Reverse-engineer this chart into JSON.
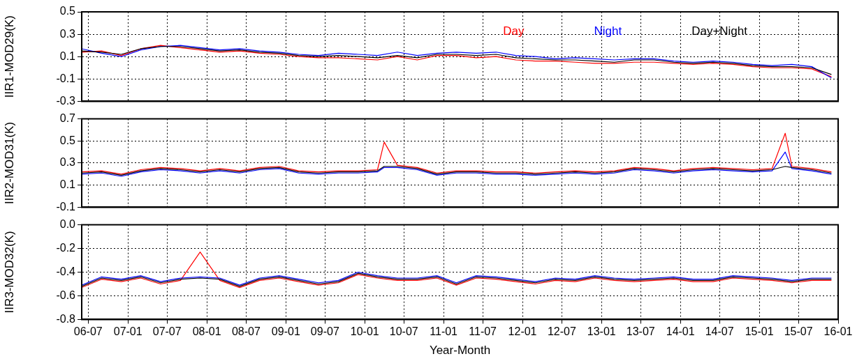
{
  "chart_data": [
    {
      "type": "line",
      "ylabel": "IIR1-MOD29(K)",
      "xlim": [
        "2006-06",
        "2016-01"
      ],
      "ylim": [
        -0.3,
        0.5
      ],
      "yticks": [
        -0.3,
        -0.1,
        0.1,
        0.3,
        0.5
      ],
      "xticks": [
        {
          "value": "2006-07",
          "label": null
        },
        {
          "value": "2007-01",
          "label": null
        },
        {
          "value": "2007-07",
          "label": null
        },
        {
          "value": "2008-01",
          "label": null
        },
        {
          "value": "2008-07",
          "label": null
        },
        {
          "value": "2009-01",
          "label": null
        },
        {
          "value": "2009-07",
          "label": null
        },
        {
          "value": "2010-01",
          "label": null
        },
        {
          "value": "2010-07",
          "label": null
        },
        {
          "value": "2011-01",
          "label": null
        },
        {
          "value": "2011-07",
          "label": null
        },
        {
          "value": "2012-01",
          "label": null
        },
        {
          "value": "2012-07",
          "label": null
        },
        {
          "value": "2013-01",
          "label": null
        },
        {
          "value": "2013-07",
          "label": null
        },
        {
          "value": "2014-01",
          "label": null
        },
        {
          "value": "2014-07",
          "label": null
        },
        {
          "value": "2015-01",
          "label": null
        },
        {
          "value": "2015-07",
          "label": null
        },
        {
          "value": "2016-01",
          "label": null
        }
      ],
      "tick_labels": "y",
      "grid": true,
      "legend": "top right",
      "marker": "none",
      "x": [
        "2006-06",
        "2006-09",
        "2006-12",
        "2007-03",
        "2007-06",
        "2007-09",
        "2007-12",
        "2008-03",
        "2008-06",
        "2008-09",
        "2008-12",
        "2009-03",
        "2009-06",
        "2009-09",
        "2009-12",
        "2010-03",
        "2010-06",
        "2010-09",
        "2010-12",
        "2011-03",
        "2011-06",
        "2011-09",
        "2011-12",
        "2012-03",
        "2012-06",
        "2012-09",
        "2012-12",
        "2013-03",
        "2013-06",
        "2013-09",
        "2013-12",
        "2014-03",
        "2014-06",
        "2014-09",
        "2014-12",
        "2015-03",
        "2015-06",
        "2015-09",
        "2015-12"
      ],
      "series": [
        {
          "name": "Day",
          "color": "#ff0000",
          "values": [
            0.14,
            0.15,
            0.11,
            0.17,
            0.2,
            0.18,
            0.16,
            0.14,
            0.15,
            0.13,
            0.12,
            0.1,
            0.09,
            0.09,
            0.08,
            0.07,
            0.1,
            0.07,
            0.11,
            0.11,
            0.09,
            0.1,
            0.07,
            0.06,
            0.06,
            0.05,
            0.04,
            0.04,
            0.05,
            0.05,
            0.04,
            0.03,
            0.04,
            0.03,
            0.01,
            0.0,
            0.0,
            -0.01,
            -0.08
          ]
        },
        {
          "name": "Night",
          "color": "#0000ff",
          "values": [
            0.17,
            0.13,
            0.1,
            0.16,
            0.19,
            0.2,
            0.18,
            0.16,
            0.17,
            0.15,
            0.14,
            0.12,
            0.11,
            0.13,
            0.12,
            0.11,
            0.14,
            0.11,
            0.13,
            0.14,
            0.13,
            0.14,
            0.11,
            0.1,
            0.08,
            0.09,
            0.08,
            0.07,
            0.08,
            0.08,
            0.06,
            0.05,
            0.06,
            0.05,
            0.03,
            0.02,
            0.03,
            0.01,
            -0.09
          ]
        },
        {
          "name": "Day+Night",
          "color": "#000000",
          "values": [
            0.15,
            0.14,
            0.12,
            0.17,
            0.19,
            0.19,
            0.17,
            0.15,
            0.16,
            0.14,
            0.13,
            0.11,
            0.1,
            0.11,
            0.1,
            0.09,
            0.11,
            0.09,
            0.12,
            0.12,
            0.11,
            0.12,
            0.09,
            0.08,
            0.07,
            0.07,
            0.06,
            0.05,
            0.07,
            0.07,
            0.05,
            0.04,
            0.05,
            0.04,
            0.02,
            0.01,
            0.01,
            0.0,
            -0.06
          ]
        }
      ]
    },
    {
      "type": "line",
      "ylabel": "IIR2-MOD31(K)",
      "xlim": [
        "2006-06",
        "2016-01"
      ],
      "ylim": [
        -0.1,
        0.7
      ],
      "yticks": [
        -0.1,
        0.1,
        0.3,
        0.5,
        0.7
      ],
      "xticks": [
        {
          "value": "2006-07",
          "label": null
        },
        {
          "value": "2007-01",
          "label": null
        },
        {
          "value": "2007-07",
          "label": null
        },
        {
          "value": "2008-01",
          "label": null
        },
        {
          "value": "2008-07",
          "label": null
        },
        {
          "value": "2009-01",
          "label": null
        },
        {
          "value": "2009-07",
          "label": null
        },
        {
          "value": "2010-01",
          "label": null
        },
        {
          "value": "2010-07",
          "label": null
        },
        {
          "value": "2011-01",
          "label": null
        },
        {
          "value": "2011-07",
          "label": null
        },
        {
          "value": "2012-01",
          "label": null
        },
        {
          "value": "2012-07",
          "label": null
        },
        {
          "value": "2013-01",
          "label": null
        },
        {
          "value": "2013-07",
          "label": null
        },
        {
          "value": "2014-01",
          "label": null
        },
        {
          "value": "2014-07",
          "label": null
        },
        {
          "value": "2015-01",
          "label": null
        },
        {
          "value": "2015-07",
          "label": null
        },
        {
          "value": "2016-01",
          "label": null
        }
      ],
      "tick_labels": "y",
      "grid": true,
      "marker": "none",
      "x": [
        "2006-06",
        "2006-09",
        "2006-12",
        "2007-03",
        "2007-06",
        "2007-09",
        "2007-12",
        "2008-03",
        "2008-06",
        "2008-09",
        "2008-12",
        "2009-03",
        "2009-06",
        "2009-09",
        "2009-12",
        "2010-03",
        "2010-04",
        "2010-06",
        "2010-09",
        "2010-12",
        "2011-03",
        "2011-06",
        "2011-09",
        "2011-12",
        "2012-03",
        "2012-06",
        "2012-09",
        "2012-12",
        "2013-03",
        "2013-06",
        "2013-09",
        "2013-12",
        "2014-03",
        "2014-06",
        "2014-09",
        "2014-12",
        "2015-03",
        "2015-05",
        "2015-06",
        "2015-09",
        "2015-12"
      ],
      "series": [
        {
          "color": "#ff0000",
          "values": [
            0.22,
            0.23,
            0.2,
            0.24,
            0.26,
            0.25,
            0.23,
            0.25,
            0.23,
            0.26,
            0.27,
            0.23,
            0.22,
            0.23,
            0.23,
            0.24,
            0.49,
            0.28,
            0.26,
            0.21,
            0.23,
            0.23,
            0.22,
            0.22,
            0.21,
            0.22,
            0.23,
            0.22,
            0.23,
            0.26,
            0.25,
            0.23,
            0.25,
            0.26,
            0.25,
            0.24,
            0.25,
            0.57,
            0.27,
            0.25,
            0.22
          ]
        },
        {
          "color": "#0000ff",
          "values": [
            0.2,
            0.21,
            0.18,
            0.22,
            0.24,
            0.23,
            0.21,
            0.23,
            0.21,
            0.24,
            0.25,
            0.21,
            0.2,
            0.21,
            0.21,
            0.22,
            0.26,
            0.26,
            0.24,
            0.19,
            0.21,
            0.21,
            0.2,
            0.2,
            0.19,
            0.2,
            0.21,
            0.2,
            0.21,
            0.24,
            0.23,
            0.21,
            0.23,
            0.24,
            0.23,
            0.22,
            0.23,
            0.4,
            0.25,
            0.23,
            0.2
          ]
        },
        {
          "color": "#000000",
          "values": [
            0.21,
            0.22,
            0.19,
            0.23,
            0.25,
            0.24,
            0.22,
            0.24,
            0.22,
            0.25,
            0.26,
            0.22,
            0.21,
            0.22,
            0.22,
            0.23,
            0.27,
            0.27,
            0.25,
            0.2,
            0.22,
            0.22,
            0.21,
            0.21,
            0.2,
            0.21,
            0.22,
            0.21,
            0.22,
            0.25,
            0.24,
            0.22,
            0.24,
            0.25,
            0.24,
            0.23,
            0.24,
            0.27,
            0.26,
            0.24,
            0.21
          ]
        }
      ]
    },
    {
      "type": "line",
      "ylabel": "IIR3-MOD32(K)",
      "xlabel": "Year-Month",
      "xlim": [
        "2006-06",
        "2016-01"
      ],
      "ylim": [
        -0.8,
        0.0
      ],
      "yticks": [
        -0.8,
        -0.6,
        -0.4,
        -0.2,
        {
          "value": 0,
          "label": "0.0"
        }
      ],
      "xticks": [
        {
          "value": "2006-07",
          "label": "06-07"
        },
        {
          "value": "2007-01",
          "label": "07-01"
        },
        {
          "value": "2007-07",
          "label": "07-07"
        },
        {
          "value": "2008-01",
          "label": "08-01"
        },
        {
          "value": "2008-07",
          "label": "08-07"
        },
        {
          "value": "2009-01",
          "label": "09-01"
        },
        {
          "value": "2009-07",
          "label": "09-07"
        },
        {
          "value": "2010-01",
          "label": "10-01"
        },
        {
          "value": "2010-07",
          "label": "10-07"
        },
        {
          "value": "2011-01",
          "label": "11-01"
        },
        {
          "value": "2011-07",
          "label": "11-07"
        },
        {
          "value": "2012-01",
          "label": "12-01"
        },
        {
          "value": "2012-07",
          "label": "12-07"
        },
        {
          "value": "2013-01",
          "label": "13-01"
        },
        {
          "value": "2013-07",
          "label": "13-07"
        },
        {
          "value": "2014-01",
          "label": "14-01"
        },
        {
          "value": "2014-07",
          "label": "14-07"
        },
        {
          "value": "2015-01",
          "label": "15-01"
        },
        {
          "value": "2015-07",
          "label": "15-07"
        },
        {
          "value": "2016-01",
          "label": "16-01"
        }
      ],
      "grid": true,
      "marker": "none",
      "x": [
        "2006-06",
        "2006-09",
        "2006-12",
        "2007-03",
        "2007-06",
        "2007-09",
        "2007-12",
        "2008-03",
        "2008-06",
        "2008-09",
        "2008-12",
        "2009-03",
        "2009-06",
        "2009-09",
        "2009-12",
        "2010-03",
        "2010-06",
        "2010-09",
        "2010-12",
        "2011-03",
        "2011-06",
        "2011-09",
        "2011-12",
        "2012-03",
        "2012-06",
        "2012-09",
        "2012-12",
        "2013-03",
        "2013-06",
        "2013-09",
        "2013-12",
        "2014-03",
        "2014-06",
        "2014-09",
        "2014-12",
        "2015-03",
        "2015-06",
        "2015-09",
        "2015-12"
      ],
      "series": [
        {
          "color": "#ff0000",
          "values": [
            -0.53,
            -0.46,
            -0.48,
            -0.45,
            -0.5,
            -0.47,
            -0.23,
            -0.47,
            -0.53,
            -0.47,
            -0.45,
            -0.48,
            -0.51,
            -0.49,
            -0.42,
            -0.45,
            -0.47,
            -0.47,
            -0.45,
            -0.51,
            -0.45,
            -0.46,
            -0.48,
            -0.5,
            -0.47,
            -0.48,
            -0.45,
            -0.47,
            -0.48,
            -0.47,
            -0.46,
            -0.48,
            -0.48,
            -0.45,
            -0.46,
            -0.47,
            -0.49,
            -0.47,
            -0.47
          ]
        },
        {
          "color": "#0000ff",
          "values": [
            -0.51,
            -0.44,
            -0.46,
            -0.43,
            -0.48,
            -0.45,
            -0.44,
            -0.45,
            -0.51,
            -0.45,
            -0.43,
            -0.46,
            -0.49,
            -0.47,
            -0.4,
            -0.43,
            -0.45,
            -0.45,
            -0.43,
            -0.49,
            -0.43,
            -0.44,
            -0.46,
            -0.48,
            -0.45,
            -0.46,
            -0.43,
            -0.45,
            -0.46,
            -0.45,
            -0.44,
            -0.46,
            -0.46,
            -0.43,
            -0.44,
            -0.45,
            -0.47,
            -0.45,
            -0.45
          ]
        },
        {
          "color": "#000000",
          "values": [
            -0.52,
            -0.45,
            -0.47,
            -0.44,
            -0.49,
            -0.46,
            -0.45,
            -0.46,
            -0.52,
            -0.46,
            -0.44,
            -0.47,
            -0.5,
            -0.48,
            -0.41,
            -0.44,
            -0.46,
            -0.46,
            -0.44,
            -0.5,
            -0.44,
            -0.45,
            -0.47,
            -0.49,
            -0.46,
            -0.47,
            -0.44,
            -0.46,
            -0.47,
            -0.46,
            -0.45,
            -0.47,
            -0.47,
            -0.44,
            -0.45,
            -0.46,
            -0.48,
            -0.46,
            -0.46
          ]
        }
      ]
    }
  ]
}
